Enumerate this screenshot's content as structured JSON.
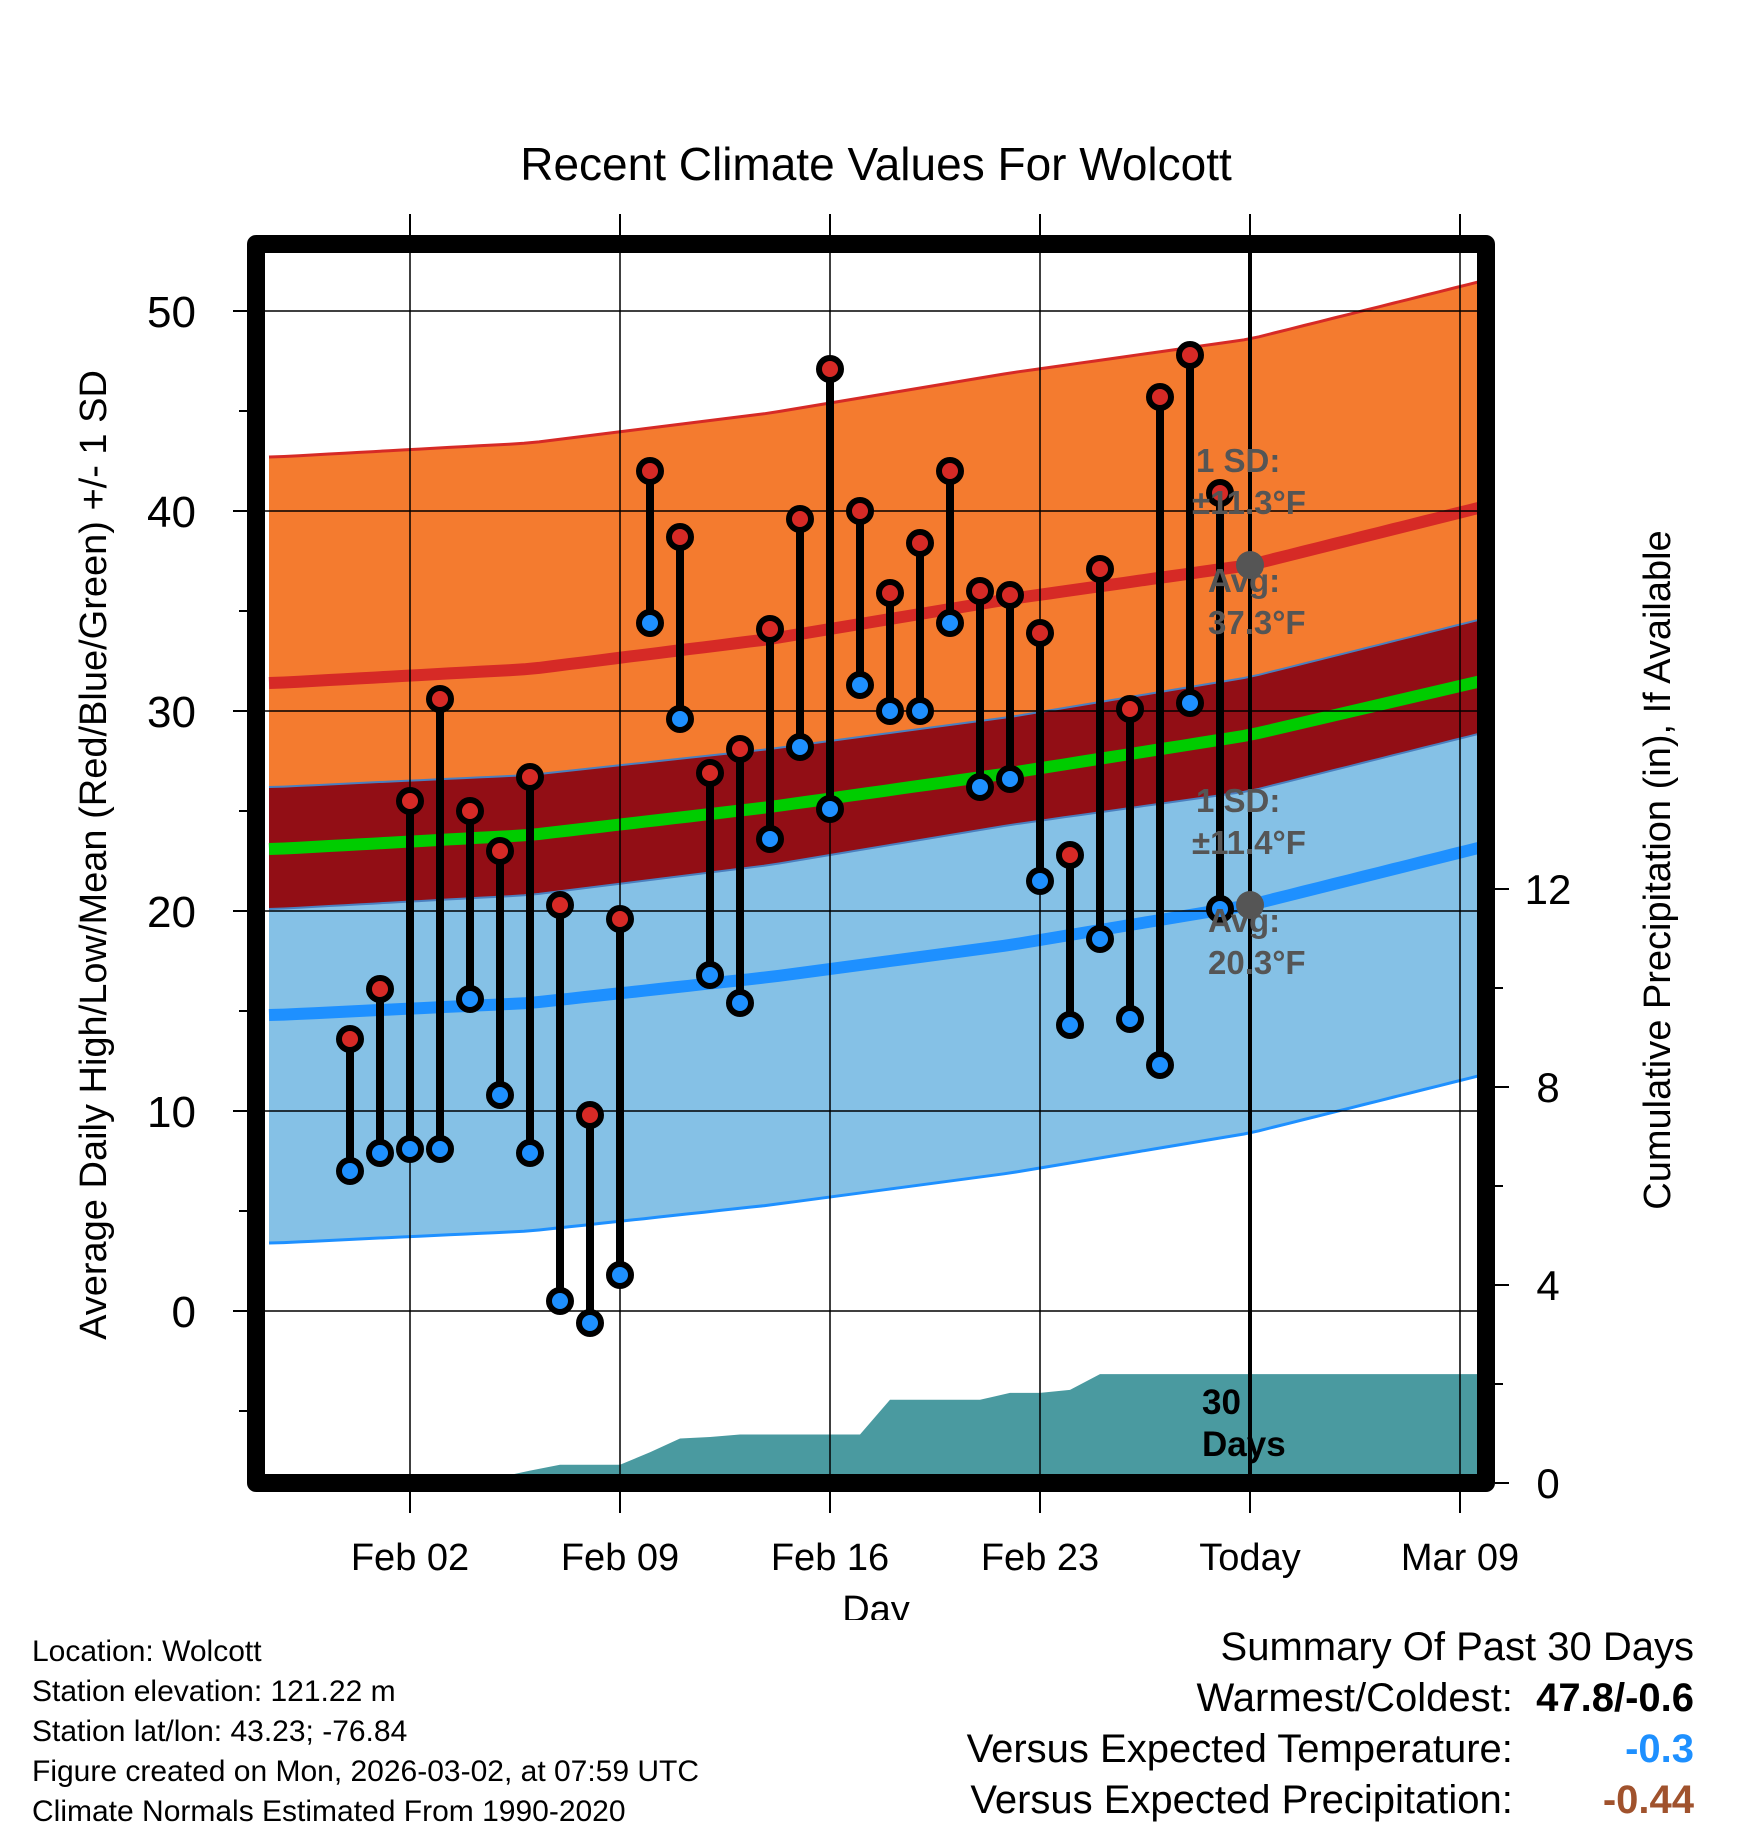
{
  "chart_data": {
    "type": "line",
    "title": "Recent Climate Values For Wolcott",
    "xlabel": "Day",
    "ylabel": "Average Daily High/Low/Mean (Red/Blue/Green) +/- 1 SD",
    "y2label": "Cumulative Precipitation (in), If Available",
    "ylim": [
      -8.3,
      52.9
    ],
    "y2lim": [
      -0.2,
      24
    ],
    "xlim": [
      -2.7,
      38.2
    ],
    "x_tick_labels": [
      {
        "day": 2,
        "label": "Feb 02"
      },
      {
        "day": 9,
        "label": "Feb 09"
      },
      {
        "day": 16,
        "label": "Feb 16"
      },
      {
        "day": 23,
        "label": "Feb 23"
      },
      {
        "day": 30,
        "label": "Today"
      },
      {
        "day": 37,
        "label": "Mar 09"
      }
    ],
    "y_ticks": [
      "0",
      "10",
      "20",
      "30",
      "40",
      "50"
    ],
    "y2_ticks": [
      "0",
      "4",
      "8",
      "12"
    ],
    "normal_high": {
      "x": [
        -2.5,
        6,
        14,
        22,
        30,
        38
      ],
      "mean": [
        31.4,
        32.1,
        33.6,
        35.6,
        37.3,
        40.3
      ],
      "sd": 11.3
    },
    "normal_low": {
      "x": [
        -2.5,
        6,
        14,
        22,
        30,
        38
      ],
      "mean": [
        14.8,
        15.4,
        16.7,
        18.3,
        20.3,
        23.3
      ],
      "sd": 11.4
    },
    "normal_mean": {
      "x": [
        -2.5,
        6,
        14,
        22,
        30,
        38
      ],
      "values": [
        23.1,
        23.8,
        25.2,
        26.9,
        28.8,
        31.6
      ]
    },
    "daily_highs": [
      13.6,
      16.1,
      25.5,
      30.6,
      25.0,
      23.0,
      26.7,
      20.3,
      9.8,
      19.6,
      42.0,
      38.7,
      26.9,
      28.1,
      34.1,
      39.6,
      47.1,
      40.0,
      35.9,
      38.4,
      42.0,
      36.0,
      35.8,
      33.9,
      22.8,
      37.1,
      30.1,
      45.7,
      47.8,
      40.9
    ],
    "daily_lows": [
      7.0,
      7.9,
      8.1,
      8.1,
      15.6,
      10.8,
      7.9,
      0.5,
      -0.6,
      1.8,
      34.4,
      29.6,
      16.8,
      15.4,
      23.6,
      28.2,
      25.1,
      31.3,
      30.0,
      30.0,
      34.4,
      26.2,
      26.6,
      21.5,
      14.3,
      18.6,
      14.6,
      12.3,
      30.4,
      20.1
    ],
    "cumulative_precip_x": [
      -2.5,
      0,
      1,
      2,
      3,
      4,
      5,
      6,
      7,
      8,
      9,
      10,
      11,
      12,
      13,
      14,
      15,
      16,
      17,
      18,
      19,
      20,
      21,
      22,
      23,
      24,
      25,
      26,
      27,
      28,
      29,
      30,
      38
    ],
    "cumulative_precip": [
      0,
      0,
      0,
      0,
      0.05,
      0.1,
      0.12,
      0.25,
      0.37,
      0.37,
      0.37,
      0.62,
      0.9,
      0.93,
      0.98,
      0.98,
      0.98,
      0.98,
      0.98,
      1.68,
      1.68,
      1.68,
      1.68,
      1.82,
      1.82,
      1.88,
      2.2,
      2.2,
      2.2,
      2.2,
      2.2,
      2.2,
      2.2
    ],
    "annotations": {
      "high_sd_l1": "1 SD:",
      "high_sd_l2": "±11.3°F",
      "high_avg_l1": "Avg:",
      "high_avg_l2": "37.3°F",
      "low_sd_l1": "1 SD:",
      "low_sd_l2": "±11.4°F",
      "low_avg_l1": "Avg:",
      "low_avg_l2": "20.3°F",
      "days_l1": "30",
      "days_l2": "Days"
    },
    "colors": {
      "high_band": "#f47b2f",
      "low_band": "#85c1e6",
      "overlap_band": "#920e15",
      "high_line": "#d62a26",
      "low_line": "#1e90ff",
      "mean_line": "#00cc00",
      "precip": "#4a9aa0",
      "high_dot": "#d62a26",
      "low_dot": "#1e90ff",
      "annotation": "#555555"
    }
  },
  "info": {
    "location": "Location: Wolcott",
    "elevation": "Station elevation: 121.22 m",
    "latlon": "Station lat/lon: 43.23; -76.84",
    "created": "Figure created on Mon, 2026-03-02, at 07:59 UTC",
    "normals": "Climate Normals Estimated From 1990-2020"
  },
  "summary": {
    "title": "Summary Of Past 30 Days",
    "warm_cold_label": "Warmest/Coldest:",
    "warm_cold_value": "47.8/-0.6",
    "temp_label": "Versus Expected Temperature:",
    "temp_value": "-0.3",
    "temp_color": "#1e90ff",
    "precip_label": "Versus Expected Precipitation:",
    "precip_value": "-0.44",
    "precip_color": "#a0522d"
  }
}
